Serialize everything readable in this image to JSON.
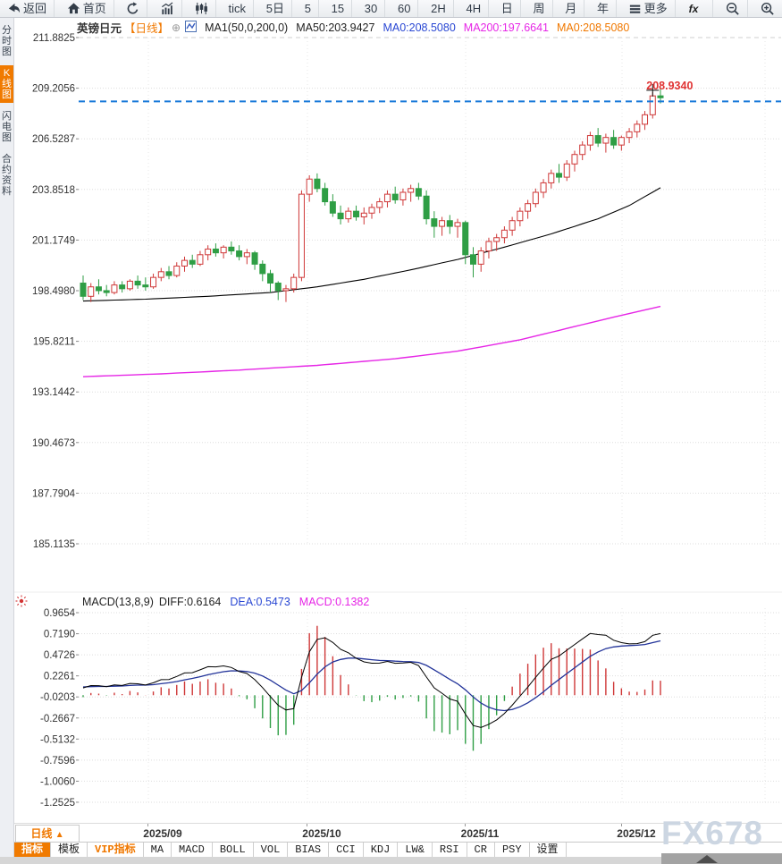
{
  "toolbar": {
    "items": [
      {
        "name": "back",
        "icon": "back-arrow",
        "label": "返回"
      },
      {
        "name": "home",
        "icon": "home",
        "label": "首页"
      },
      {
        "name": "refresh",
        "icon": "refresh",
        "label": ""
      },
      {
        "name": "bar-chart",
        "icon": "bar-chart",
        "label": ""
      },
      {
        "name": "candlestick",
        "icon": "candlestick",
        "label": ""
      },
      {
        "name": "tick",
        "icon": "",
        "label": "tick"
      },
      {
        "name": "5d",
        "icon": "",
        "label": "5日"
      },
      {
        "name": "5",
        "icon": "",
        "label": "5"
      },
      {
        "name": "15",
        "icon": "",
        "label": "15"
      },
      {
        "name": "30",
        "icon": "",
        "label": "30"
      },
      {
        "name": "60",
        "icon": "",
        "label": "60"
      },
      {
        "name": "2h",
        "icon": "",
        "label": "2H"
      },
      {
        "name": "4h",
        "icon": "",
        "label": "4H"
      },
      {
        "name": "day",
        "icon": "",
        "label": "日"
      },
      {
        "name": "week",
        "icon": "",
        "label": "周"
      },
      {
        "name": "month",
        "icon": "",
        "label": "月"
      },
      {
        "name": "year",
        "icon": "",
        "label": "年"
      },
      {
        "name": "more",
        "icon": "menu",
        "label": "更多"
      },
      {
        "name": "fx",
        "icon": "fx",
        "label": ""
      },
      {
        "name": "zoom-out",
        "icon": "zoom-out",
        "label": ""
      },
      {
        "name": "zoom-in",
        "icon": "zoom-in",
        "label": ""
      }
    ]
  },
  "sidebar": {
    "items": [
      {
        "name": "time-chart",
        "label": "分时图",
        "active": false
      },
      {
        "name": "kline-chart",
        "label": "K线图",
        "active": true
      },
      {
        "name": "lightning-chart",
        "label": "闪电图",
        "active": false
      },
      {
        "name": "contract-info",
        "label": "合约资料",
        "active": false
      }
    ]
  },
  "chart_header": {
    "symbol": "英镑日元",
    "period_tag": "【日线】",
    "plus_glyph": "⊕",
    "ma_settings": "MA1(50,0,200,0)",
    "ma50": "MA50:203.9427",
    "ma0_blue": "MA0:208.5080",
    "ma200": "MA200:197.6641",
    "ma0_orange": "MA0:208.5080"
  },
  "macd_header": {
    "title": "MACD(13,8,9)",
    "diff": "DIFF:0.6164",
    "dea": "DEA:0.5473",
    "macd": "MACD:0.1382"
  },
  "bottom": {
    "period_selector": "日线",
    "period_arrow": "▲",
    "tabs": [
      {
        "label": "指标",
        "state": "active"
      },
      {
        "label": "模板",
        "state": ""
      },
      {
        "label": "VIP指标",
        "state": "vip"
      },
      {
        "label": "MA",
        "state": ""
      },
      {
        "label": "MACD",
        "state": ""
      },
      {
        "label": "BOLL",
        "state": ""
      },
      {
        "label": "VOL",
        "state": ""
      },
      {
        "label": "BIAS",
        "state": ""
      },
      {
        "label": "CCI",
        "state": ""
      },
      {
        "label": "KDJ",
        "state": ""
      },
      {
        "label": "LW&",
        "state": ""
      },
      {
        "label": "RSI",
        "state": ""
      },
      {
        "label": "CR",
        "state": ""
      },
      {
        "label": "PSY",
        "state": ""
      },
      {
        "label": "设置",
        "state": ""
      }
    ]
  },
  "watermark": "FX678",
  "colors": {
    "accent_orange": "#f07800",
    "up_red": "#cf3838",
    "down_green": "#2f9e45",
    "ma50_black": "#000000",
    "ma200_magenta": "#e626e6",
    "dea_blue": "#223399",
    "current_line_blue": "#1779d9",
    "price_label_red": "#e03333"
  },
  "chart_data": {
    "type": "candlestick",
    "symbol": "英镑日元",
    "timeframe": "日线",
    "title": "英镑日元 日线 (GBP/JPY daily) with MA50/MA200 and MACD(13,8,9)",
    "x_axis_labels": [
      "2025/09",
      "2025/10",
      "2025/11",
      "2025/12"
    ],
    "price_axis": [
      211.8825,
      209.2056,
      206.5287,
      203.8518,
      201.1749,
      198.498,
      195.8211,
      193.1442,
      190.4673,
      187.7904,
      185.1135
    ],
    "macd_axis": [
      0.9654,
      0.719,
      0.4726,
      0.2261,
      -0.0203,
      -0.2667,
      -0.5132,
      -0.7596,
      -1.006,
      -1.2525
    ],
    "current_price": 208.934,
    "current_price_label": "208.9340",
    "close_current": 208.508,
    "ma50_current": 203.9427,
    "ma200_current": 197.6641,
    "macd_values": {
      "params": "13,8,9",
      "diff": 0.6164,
      "dea": 0.5473,
      "macd": 0.1382
    },
    "legend_position": "top",
    "grid": "dotted",
    "candles": [
      [
        198.9,
        199.3,
        198.0,
        198.2
      ],
      [
        198.2,
        198.9,
        197.9,
        198.7
      ],
      [
        198.7,
        199.1,
        198.3,
        198.5
      ],
      [
        198.5,
        198.8,
        198.2,
        198.4
      ],
      [
        198.4,
        199.0,
        198.3,
        198.8
      ],
      [
        198.8,
        199.0,
        198.4,
        198.6
      ],
      [
        198.6,
        199.1,
        198.5,
        199.0
      ],
      [
        199.0,
        199.3,
        198.6,
        198.8
      ],
      [
        198.8,
        199.2,
        198.5,
        198.7
      ],
      [
        198.7,
        199.4,
        198.6,
        199.2
      ],
      [
        199.2,
        199.7,
        199.0,
        199.5
      ],
      [
        199.5,
        199.8,
        199.1,
        199.3
      ],
      [
        199.3,
        200.0,
        199.2,
        199.8
      ],
      [
        199.8,
        200.3,
        199.5,
        200.1
      ],
      [
        200.1,
        200.4,
        199.7,
        199.9
      ],
      [
        199.9,
        200.6,
        199.8,
        200.4
      ],
      [
        200.4,
        200.9,
        200.1,
        200.7
      ],
      [
        200.7,
        201.0,
        200.3,
        200.5
      ],
      [
        200.5,
        200.9,
        200.2,
        200.8
      ],
      [
        200.8,
        201.1,
        200.4,
        200.6
      ],
      [
        200.6,
        200.9,
        200.1,
        200.3
      ],
      [
        200.3,
        200.7,
        199.9,
        200.5
      ],
      [
        200.5,
        200.6,
        199.6,
        199.9
      ],
      [
        199.9,
        200.1,
        199.0,
        199.4
      ],
      [
        199.4,
        199.6,
        198.4,
        198.9
      ],
      [
        198.9,
        199.0,
        198.0,
        198.5
      ],
      [
        198.5,
        198.8,
        197.9,
        198.6
      ],
      [
        198.6,
        199.4,
        198.4,
        199.2
      ],
      [
        199.2,
        203.8,
        199.0,
        203.6
      ],
      [
        203.6,
        204.6,
        203.2,
        204.4
      ],
      [
        204.4,
        204.7,
        203.7,
        203.9
      ],
      [
        203.9,
        204.2,
        203.0,
        203.2
      ],
      [
        203.2,
        203.6,
        202.4,
        202.6
      ],
      [
        202.6,
        203.0,
        202.0,
        202.3
      ],
      [
        202.3,
        202.9,
        202.1,
        202.7
      ],
      [
        202.7,
        203.0,
        202.2,
        202.4
      ],
      [
        202.4,
        202.9,
        202.0,
        202.6
      ],
      [
        202.6,
        203.1,
        202.3,
        202.9
      ],
      [
        202.9,
        203.4,
        202.6,
        203.2
      ],
      [
        203.2,
        203.8,
        202.9,
        203.6
      ],
      [
        203.6,
        204.0,
        203.1,
        203.3
      ],
      [
        203.3,
        203.9,
        203.0,
        203.7
      ],
      [
        203.7,
        204.1,
        203.2,
        203.9
      ],
      [
        203.9,
        204.2,
        203.3,
        203.5
      ],
      [
        203.5,
        203.8,
        202.0,
        202.3
      ],
      [
        202.3,
        202.7,
        201.3,
        201.9
      ],
      [
        201.9,
        202.4,
        201.4,
        202.2
      ],
      [
        202.2,
        202.5,
        201.5,
        201.9
      ],
      [
        201.9,
        202.3,
        201.3,
        202.1
      ],
      [
        202.1,
        202.2,
        199.9,
        200.4
      ],
      [
        200.4,
        200.8,
        199.2,
        199.9
      ],
      [
        199.9,
        200.8,
        199.5,
        200.6
      ],
      [
        200.6,
        201.3,
        200.2,
        201.1
      ],
      [
        201.1,
        201.5,
        200.6,
        201.3
      ],
      [
        201.3,
        201.9,
        201.0,
        201.7
      ],
      [
        201.7,
        202.4,
        201.4,
        202.2
      ],
      [
        202.2,
        202.9,
        201.9,
        202.7
      ],
      [
        202.7,
        203.3,
        202.3,
        203.1
      ],
      [
        203.1,
        203.9,
        202.9,
        203.7
      ],
      [
        203.7,
        204.4,
        203.4,
        204.2
      ],
      [
        204.2,
        204.9,
        203.9,
        204.7
      ],
      [
        204.7,
        205.2,
        204.2,
        204.5
      ],
      [
        204.5,
        205.4,
        204.3,
        205.2
      ],
      [
        205.2,
        205.9,
        204.8,
        205.7
      ],
      [
        205.7,
        206.4,
        205.4,
        206.2
      ],
      [
        206.2,
        206.9,
        205.9,
        206.7
      ],
      [
        206.7,
        207.1,
        206.1,
        206.3
      ],
      [
        206.3,
        206.8,
        205.8,
        206.6
      ],
      [
        206.6,
        207.0,
        206.0,
        206.2
      ],
      [
        206.2,
        206.7,
        205.9,
        206.6
      ],
      [
        206.6,
        207.1,
        206.3,
        206.9
      ],
      [
        206.9,
        207.5,
        206.6,
        207.3
      ],
      [
        207.3,
        208.0,
        207.0,
        207.8
      ],
      [
        207.8,
        209.0,
        207.6,
        208.8
      ],
      [
        208.8,
        209.2,
        208.4,
        208.7
      ]
    ],
    "ma50_points": [
      [
        0,
        197.95
      ],
      [
        8,
        198.05
      ],
      [
        16,
        198.2
      ],
      [
        24,
        198.4
      ],
      [
        30,
        198.7
      ],
      [
        36,
        199.1
      ],
      [
        42,
        199.6
      ],
      [
        48,
        200.15
      ],
      [
        54,
        200.8
      ],
      [
        60,
        201.5
      ],
      [
        66,
        202.3
      ],
      [
        70,
        203.0
      ],
      [
        74,
        203.9427
      ]
    ],
    "ma200_points": [
      [
        0,
        193.95
      ],
      [
        10,
        194.1
      ],
      [
        20,
        194.3
      ],
      [
        30,
        194.55
      ],
      [
        40,
        194.9
      ],
      [
        48,
        195.3
      ],
      [
        56,
        195.9
      ],
      [
        62,
        196.5
      ],
      [
        68,
        197.1
      ],
      [
        74,
        197.6641
      ]
    ]
  }
}
